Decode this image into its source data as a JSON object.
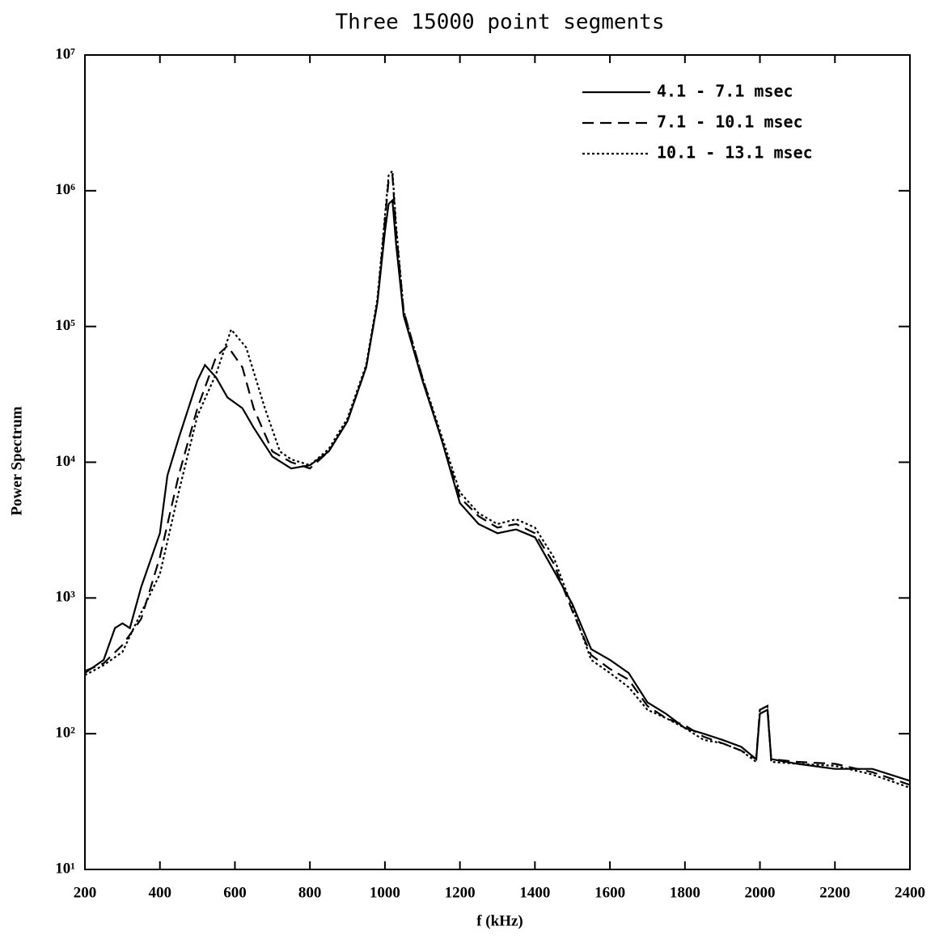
{
  "chart_data": {
    "type": "line",
    "title": "Three 15000 point segments",
    "xlabel": "f (kHz)",
    "ylabel": "Power Spectrum",
    "xlim": [
      200,
      2400
    ],
    "ylim": [
      10,
      10000000
    ],
    "ylog": true,
    "xticks": [
      200,
      400,
      600,
      800,
      1000,
      1200,
      1400,
      1600,
      1800,
      2000,
      2200,
      2400
    ],
    "yticks": [
      {
        "value": 10,
        "label": "10¹"
      },
      {
        "value": 100,
        "label": "10²"
      },
      {
        "value": 1000,
        "label": "10³"
      },
      {
        "value": 10000,
        "label": "10⁴"
      },
      {
        "value": 100000,
        "label": "10⁵"
      },
      {
        "value": 1000000,
        "label": "10⁶"
      },
      {
        "value": 10000000,
        "label": "10⁷"
      }
    ],
    "legend": "upper right",
    "series": [
      {
        "name": "4.1 - 7.1 msec",
        "color": "#000000",
        "dash": "solid",
        "x": [
          200,
          250,
          280,
          300,
          320,
          350,
          400,
          420,
          450,
          500,
          520,
          550,
          580,
          620,
          650,
          700,
          750,
          800,
          850,
          900,
          950,
          980,
          1000,
          1010,
          1020,
          1030,
          1050,
          1100,
          1150,
          1200,
          1250,
          1300,
          1350,
          1400,
          1450,
          1500,
          1550,
          1600,
          1650,
          1700,
          1750,
          1800,
          1850,
          1900,
          1950,
          1990,
          2000,
          2020,
          2030,
          2100,
          2200,
          2300,
          2400
        ],
        "values": [
          280,
          350,
          600,
          650,
          600,
          1200,
          3000,
          8000,
          15000,
          40000,
          52000,
          42000,
          30000,
          25000,
          18000,
          11000,
          9000,
          9500,
          12000,
          20000,
          50000,
          150000,
          500000,
          800000,
          850000,
          400000,
          120000,
          40000,
          15000,
          5000,
          3500,
          3000,
          3200,
          2800,
          1600,
          900,
          420,
          350,
          280,
          170,
          140,
          110,
          100,
          90,
          80,
          65,
          140,
          150,
          65,
          60,
          55,
          55,
          45
        ]
      },
      {
        "name": "7.1 - 10.1 msec",
        "color": "#000000",
        "dash": "dashed",
        "x": [
          200,
          250,
          300,
          350,
          400,
          450,
          500,
          550,
          580,
          620,
          650,
          700,
          750,
          800,
          850,
          900,
          950,
          980,
          1000,
          1010,
          1020,
          1030,
          1050,
          1100,
          1150,
          1200,
          1250,
          1300,
          1350,
          1400,
          1450,
          1500,
          1550,
          1600,
          1650,
          1700,
          1750,
          1800,
          1850,
          1900,
          1950,
          1990,
          2000,
          2020,
          2030,
          2100,
          2200,
          2300,
          2400
        ],
        "values": [
          290,
          330,
          450,
          700,
          2000,
          8000,
          25000,
          60000,
          72000,
          50000,
          25000,
          12000,
          10000,
          9000,
          12000,
          20000,
          50000,
          150000,
          600000,
          1200000,
          1300000,
          500000,
          130000,
          42000,
          15000,
          5500,
          4000,
          3300,
          3500,
          3000,
          1800,
          800,
          380,
          300,
          250,
          160,
          130,
          115,
          95,
          85,
          75,
          65,
          150,
          160,
          65,
          62,
          60,
          52,
          42
        ]
      },
      {
        "name": "10.1 - 13.1 msec",
        "color": "#000000",
        "dash": "dotted",
        "x": [
          200,
          250,
          300,
          330,
          400,
          450,
          500,
          550,
          590,
          630,
          680,
          720,
          750,
          800,
          850,
          900,
          950,
          980,
          1000,
          1010,
          1020,
          1030,
          1050,
          1100,
          1150,
          1200,
          1250,
          1300,
          1350,
          1400,
          1450,
          1500,
          1550,
          1600,
          1650,
          1700,
          1750,
          1800,
          1850,
          1900,
          1950,
          1990,
          2000,
          2020,
          2030,
          2100,
          2200,
          2300,
          2400
        ],
        "values": [
          270,
          320,
          400,
          600,
          1500,
          6000,
          22000,
          45000,
          95000,
          70000,
          25000,
          12000,
          10500,
          9500,
          12500,
          21000,
          52000,
          160000,
          650000,
          1300000,
          1400000,
          550000,
          130000,
          42000,
          16000,
          6000,
          4200,
          3500,
          3800,
          3300,
          2000,
          850,
          350,
          280,
          220,
          150,
          130,
          110,
          90,
          85,
          75,
          62,
          150,
          160,
          62,
          60,
          58,
          50,
          40
        ]
      }
    ]
  }
}
